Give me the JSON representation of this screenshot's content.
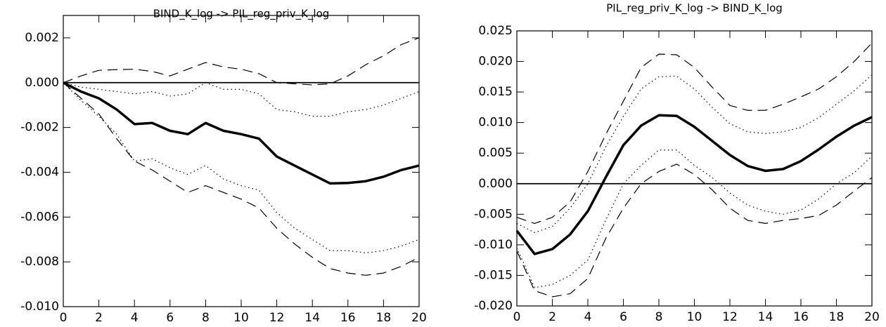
{
  "chart_data": [
    {
      "type": "line",
      "title": "BIND_K_log -> PIL_reg_priv_K_log",
      "x": [
        0,
        1,
        2,
        3,
        4,
        5,
        6,
        7,
        8,
        9,
        10,
        11,
        12,
        13,
        14,
        15,
        16,
        17,
        18,
        19,
        20
      ],
      "xlim": [
        0,
        20
      ],
      "xticks": [
        0,
        2,
        4,
        6,
        8,
        10,
        12,
        14,
        16,
        18,
        20
      ],
      "ylim": [
        -0.01,
        0.003
      ],
      "yticks": [
        {
          "value": -0.01,
          "label": "-0.010"
        },
        -0.008,
        -0.006,
        -0.004,
        -0.002,
        {
          "value": 0,
          "label": "0.000"
        },
        0.002
      ],
      "hline": 0,
      "series": [
        {
          "color": "#000000",
          "style": "solid",
          "width": 3.5,
          "values": [
            0,
            -0.0004,
            -0.0007,
            -0.0012,
            -0.00185,
            -0.0018,
            -0.00215,
            -0.0023,
            -0.0018,
            -0.00215,
            -0.0023,
            -0.0025,
            -0.0033,
            -0.0037,
            -0.0041,
            -0.0045,
            -0.00448,
            -0.0044,
            -0.0042,
            -0.0039,
            -0.0037
          ]
        },
        {
          "color": "#000000",
          "style": "dashed",
          "width": 1.2,
          "values": [
            0,
            0.0003,
            0.00055,
            0.00058,
            0.0006,
            0.0005,
            0.0003,
            0.0006,
            0.0009,
            0.0007,
            0.0006,
            0.0004,
            0.0,
            -5e-05,
            -0.0001,
            -5e-05,
            0.0003,
            0.0008,
            0.0012,
            0.0017,
            0.002
          ]
        },
        {
          "color": "#000000",
          "style": "dotted",
          "width": 1.2,
          "values": [
            0,
            -0.0002,
            -0.0003,
            -0.0004,
            -0.0005,
            -0.0004,
            -0.0006,
            -0.0005,
            0,
            -0.0003,
            -0.0003,
            -0.0005,
            -0.0012,
            -0.0013,
            -0.0015,
            -0.0015,
            -0.0013,
            -0.0012,
            -0.001,
            -0.0007,
            -0.0004
          ]
        },
        {
          "color": "#000000",
          "style": "dotted",
          "width": 1.2,
          "values": [
            0,
            -0.0008,
            -0.0015,
            -0.0023,
            -0.0035,
            -0.0034,
            -0.0038,
            -0.0041,
            -0.0037,
            -0.0043,
            -0.0046,
            -0.0048,
            -0.0058,
            -0.0065,
            -0.007,
            -0.0075,
            -0.0075,
            -0.0076,
            -0.0075,
            -0.0073,
            -0.007
          ]
        },
        {
          "color": "#000000",
          "style": "dashed",
          "width": 1.2,
          "values": [
            0,
            -0.0007,
            -0.0014,
            -0.0025,
            -0.0035,
            -0.0039,
            -0.0044,
            -0.0049,
            -0.0046,
            -0.0049,
            -0.0052,
            -0.0056,
            -0.0065,
            -0.0072,
            -0.0078,
            -0.0083,
            -0.0085,
            -0.0086,
            -0.0085,
            -0.0082,
            -0.0078
          ]
        }
      ]
    },
    {
      "type": "line",
      "title": "PIL_reg_priv_K_log -> BIND_K_log",
      "x": [
        0,
        1,
        2,
        3,
        4,
        5,
        6,
        7,
        8,
        9,
        10,
        11,
        12,
        13,
        14,
        15,
        16,
        17,
        18,
        19,
        20
      ],
      "xlim": [
        0,
        20
      ],
      "xticks": [
        0,
        2,
        4,
        6,
        8,
        10,
        12,
        14,
        16,
        18,
        20
      ],
      "ylim": [
        -0.02,
        0.025
      ],
      "yticks": [
        {
          "value": -0.02,
          "label": "-0.020"
        },
        -0.015,
        {
          "value": -0.01,
          "label": "-0.010"
        },
        -0.005,
        {
          "value": 0,
          "label": "0.000"
        },
        0.005,
        {
          "value": 0.01,
          "label": "0.010"
        },
        0.015,
        {
          "value": 0.02,
          "label": "0.020"
        },
        0.025
      ],
      "hline": 0,
      "series": [
        {
          "color": "#000000",
          "style": "solid",
          "width": 3.5,
          "values": [
            -0.0077,
            -0.0115,
            -0.0107,
            -0.0083,
            -0.0045,
            0.001,
            0.0063,
            0.0095,
            0.0112,
            0.0111,
            0.0093,
            0.007,
            0.0047,
            0.0029,
            0.0021,
            0.0024,
            0.0037,
            0.0056,
            0.0077,
            0.0095,
            0.0109
          ]
        },
        {
          "color": "#000000",
          "style": "dashed",
          "width": 1.2,
          "values": [
            -0.0055,
            -0.0065,
            -0.0055,
            -0.003,
            0.002,
            0.008,
            0.0135,
            0.019,
            0.0212,
            0.0211,
            0.019,
            0.0158,
            0.0128,
            0.012,
            0.012,
            0.013,
            0.0142,
            0.0155,
            0.0175,
            0.02,
            0.023
          ]
        },
        {
          "color": "#000000",
          "style": "dotted",
          "width": 1.2,
          "values": [
            -0.0065,
            -0.008,
            -0.007,
            -0.004,
            0.0,
            0.006,
            0.011,
            0.0155,
            0.0175,
            0.0176,
            0.0155,
            0.0125,
            0.0098,
            0.0085,
            0.0082,
            0.0085,
            0.0092,
            0.0108,
            0.013,
            0.0152,
            0.0178
          ]
        },
        {
          "color": "#000000",
          "style": "dotted",
          "width": 1.2,
          "values": [
            -0.0105,
            -0.017,
            -0.0165,
            -0.015,
            -0.0125,
            -0.006,
            0.0,
            0.003,
            0.0055,
            0.0055,
            0.003,
            0.001,
            -0.0015,
            -0.0035,
            -0.0045,
            -0.005,
            -0.0043,
            -0.0025,
            0.0,
            0.0018,
            0.0045
          ]
        },
        {
          "color": "#000000",
          "style": "dashed",
          "width": 1.2,
          "values": [
            -0.011,
            -0.0175,
            -0.0185,
            -0.018,
            -0.0155,
            -0.009,
            -0.004,
            0.0,
            0.002,
            0.0032,
            0.0015,
            -0.001,
            -0.004,
            -0.006,
            -0.0065,
            -0.006,
            -0.0057,
            -0.0052,
            -0.0035,
            -0.0012,
            0.001
          ]
        }
      ]
    }
  ]
}
